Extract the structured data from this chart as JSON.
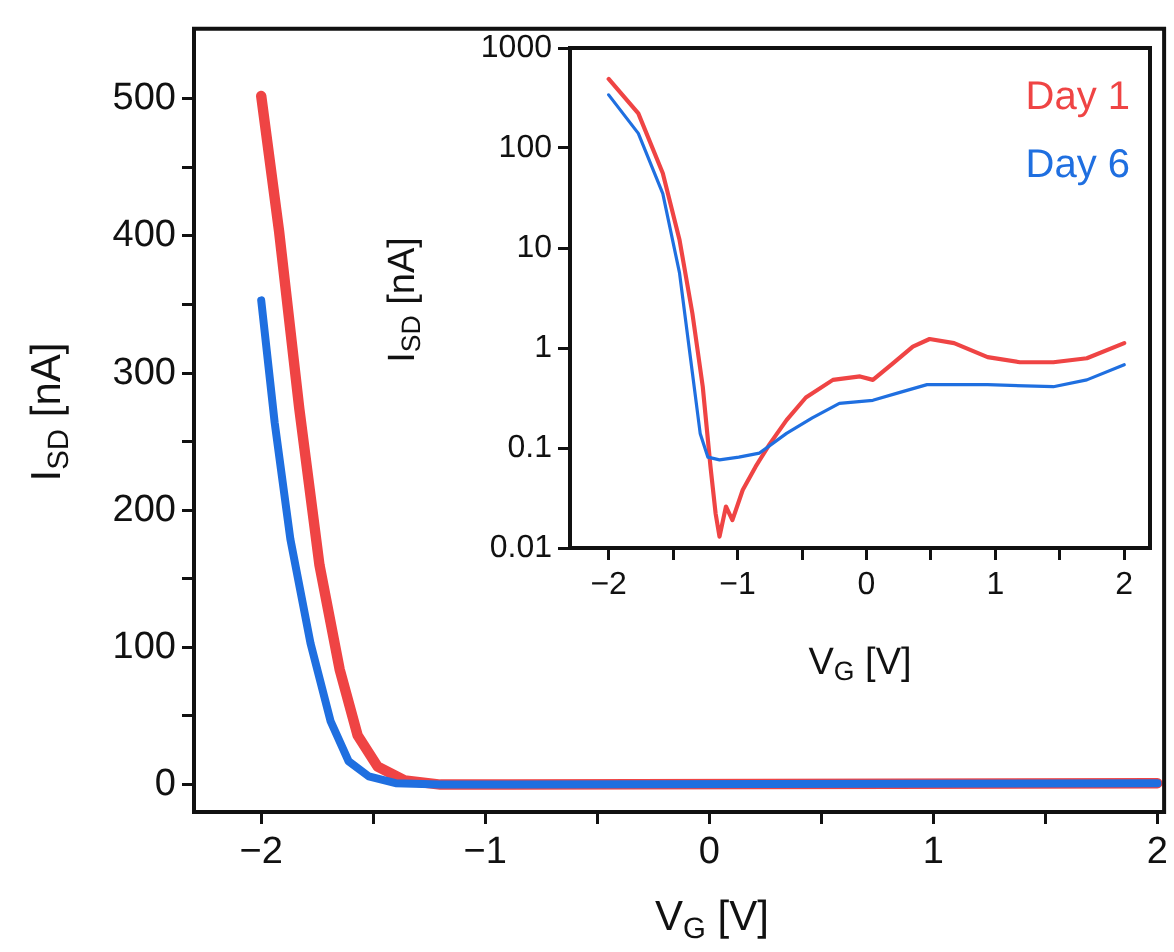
{
  "chart_data": [
    {
      "type": "line",
      "xlabel": "V$_{G}$ [V]",
      "ylabel": "I$_{SD}$ [nA]",
      "xlim": [
        -2.3,
        2.03
      ],
      "ylim": [
        -20,
        551
      ],
      "xticks": [
        {
          "value": -2,
          "label": "−2"
        },
        {
          "value": -1.5,
          "label": null
        },
        {
          "value": -1,
          "label": "−1"
        },
        {
          "value": -0.5,
          "label": null
        },
        0,
        {
          "value": 0.5,
          "label": null
        },
        1,
        {
          "value": 1.5,
          "label": null
        },
        2
      ],
      "yticks": [
        0,
        {
          "value": 50,
          "label": null
        },
        100,
        {
          "value": 150,
          "label": null
        },
        200,
        {
          "value": 250,
          "label": null
        },
        300,
        {
          "value": 350,
          "label": null
        },
        400,
        {
          "value": 450,
          "label": null
        },
        500
      ],
      "marker": "none",
      "line_style": "solid",
      "series": [
        {
          "color": "#ef4444",
          "x": [
            -2,
            -1.92,
            -1.83,
            -1.74,
            -1.65,
            -1.57,
            -1.48,
            -1.36,
            -1.2,
            2
          ],
          "values": [
            502,
            403,
            274,
            160,
            84,
            36,
            13,
            3,
            0,
            1
          ]
        },
        {
          "color": "#1f6fe0",
          "x": [
            -2,
            -1.94,
            -1.87,
            -1.78,
            -1.69,
            -1.61,
            -1.52,
            -1.4,
            -1.2,
            2
          ],
          "values": [
            353,
            264,
            179,
            103,
            46,
            17,
            6,
            1,
            0,
            1
          ]
        }
      ]
    },
    {
      "type": "line",
      "xlabel": "V$_{G}$ [V]",
      "ylabel": "I$_{SD}$ [nA]",
      "xlim": [
        -2.3,
        2.2
      ],
      "ylim": [
        0.01,
        1000
      ],
      "log": "y",
      "xticks": [
        {
          "value": -2,
          "label": "−2"
        },
        {
          "value": -1.5,
          "label": null
        },
        {
          "value": -1,
          "label": "−1"
        },
        {
          "value": -0.5,
          "label": null
        },
        0,
        {
          "value": 0.5,
          "label": null
        },
        1,
        {
          "value": 1.5,
          "label": null
        },
        2
      ],
      "yticks": [
        0.01,
        0.1,
        1,
        10,
        100,
        1000
      ],
      "marker": "none",
      "line_style": "solid",
      "legend": "top right",
      "series": [
        {
          "name": "Day 1",
          "color": "#ef4444",
          "x": [
            -2,
            -1.77,
            -1.58,
            -1.45,
            -1.35,
            -1.27,
            -1.21,
            -1.17,
            -1.14,
            -1.09,
            -1.04,
            -0.96,
            -0.86,
            -0.75,
            -0.62,
            -0.47,
            -0.26,
            -0.05,
            0.05,
            0.21,
            0.36,
            0.49,
            0.68,
            0.94,
            1.19,
            1.45,
            1.71,
            2
          ],
          "values": [
            490,
            222,
            56,
            12,
            2.2,
            0.41,
            0.065,
            0.022,
            0.013,
            0.026,
            0.019,
            0.038,
            0.065,
            0.11,
            0.19,
            0.32,
            0.48,
            0.52,
            0.48,
            0.71,
            1.03,
            1.23,
            1.12,
            0.81,
            0.72,
            0.72,
            0.79,
            1.12
          ]
        },
        {
          "name": "Day 6",
          "color": "#1f6fe0",
          "x": [
            -2,
            -1.77,
            -1.58,
            -1.45,
            -1.35,
            -1.29,
            -1.23,
            -1.14,
            -0.99,
            -0.83,
            -0.62,
            -0.42,
            -0.21,
            0.05,
            0.26,
            0.47,
            0.94,
            1.45,
            1.71,
            2
          ],
          "values": [
            340,
            140,
            35,
            5.6,
            0.56,
            0.14,
            0.081,
            0.076,
            0.081,
            0.089,
            0.14,
            0.2,
            0.28,
            0.3,
            0.36,
            0.43,
            0.43,
            0.41,
            0.48,
            0.68
          ]
        }
      ]
    }
  ]
}
